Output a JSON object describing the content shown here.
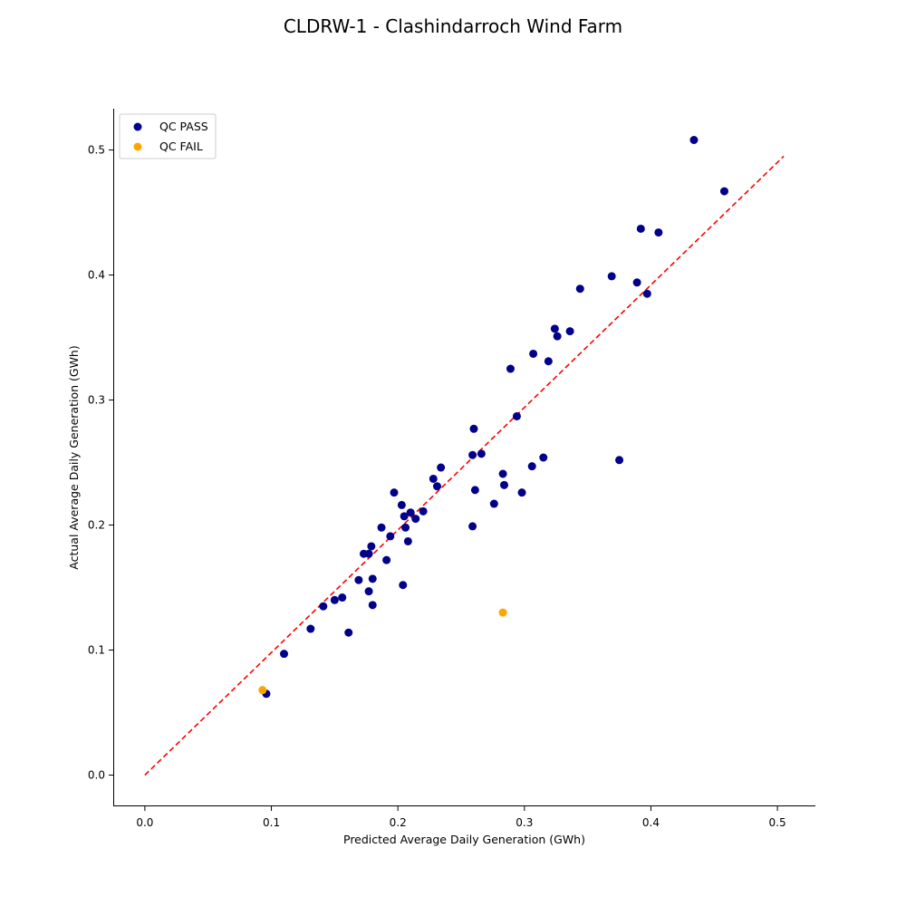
{
  "chart_data": {
    "type": "scatter",
    "title": "CLDRW-1 - Clashindarroch Wind Farm",
    "xlabel": "Predicted Average Daily Generation (GWh)",
    "ylabel": "Actual Average Daily Generation (GWh)",
    "xlim": [
      -0.025,
      0.53
    ],
    "ylim": [
      -0.025,
      0.533
    ],
    "xticks": [
      "0.0",
      "0.1",
      "0.2",
      "0.3",
      "0.4",
      "0.5"
    ],
    "yticks": [
      "0.0",
      "0.1",
      "0.2",
      "0.3",
      "0.4",
      "0.5"
    ],
    "grid": false,
    "legend_position": "upper-left",
    "reference_line": {
      "style": "dashed",
      "color": "#ff0000",
      "from": [
        0,
        0
      ],
      "to": [
        0.505,
        0.495
      ]
    },
    "series": [
      {
        "name": "QC PASS",
        "color": "#00008b",
        "points": [
          [
            0.096,
            0.065
          ],
          [
            0.11,
            0.097
          ],
          [
            0.131,
            0.117
          ],
          [
            0.141,
            0.135
          ],
          [
            0.15,
            0.14
          ],
          [
            0.156,
            0.142
          ],
          [
            0.161,
            0.114
          ],
          [
            0.169,
            0.156
          ],
          [
            0.173,
            0.177
          ],
          [
            0.177,
            0.147
          ],
          [
            0.177,
            0.177
          ],
          [
            0.179,
            0.183
          ],
          [
            0.18,
            0.136
          ],
          [
            0.18,
            0.157
          ],
          [
            0.187,
            0.198
          ],
          [
            0.191,
            0.172
          ],
          [
            0.194,
            0.191
          ],
          [
            0.197,
            0.226
          ],
          [
            0.203,
            0.216
          ],
          [
            0.204,
            0.152
          ],
          [
            0.205,
            0.207
          ],
          [
            0.206,
            0.198
          ],
          [
            0.208,
            0.187
          ],
          [
            0.21,
            0.21
          ],
          [
            0.214,
            0.205
          ],
          [
            0.22,
            0.211
          ],
          [
            0.228,
            0.237
          ],
          [
            0.231,
            0.231
          ],
          [
            0.234,
            0.246
          ],
          [
            0.259,
            0.199
          ],
          [
            0.259,
            0.256
          ],
          [
            0.26,
            0.277
          ],
          [
            0.261,
            0.228
          ],
          [
            0.266,
            0.257
          ],
          [
            0.276,
            0.217
          ],
          [
            0.283,
            0.241
          ],
          [
            0.284,
            0.232
          ],
          [
            0.289,
            0.325
          ],
          [
            0.294,
            0.287
          ],
          [
            0.298,
            0.226
          ],
          [
            0.306,
            0.247
          ],
          [
            0.307,
            0.337
          ],
          [
            0.315,
            0.254
          ],
          [
            0.319,
            0.331
          ],
          [
            0.324,
            0.357
          ],
          [
            0.326,
            0.351
          ],
          [
            0.336,
            0.355
          ],
          [
            0.344,
            0.389
          ],
          [
            0.369,
            0.399
          ],
          [
            0.375,
            0.252
          ],
          [
            0.389,
            0.394
          ],
          [
            0.392,
            0.437
          ],
          [
            0.397,
            0.385
          ],
          [
            0.406,
            0.434
          ],
          [
            0.434,
            0.508
          ],
          [
            0.458,
            0.467
          ]
        ]
      },
      {
        "name": "QC FAIL",
        "color": "#ffa500",
        "points": [
          [
            0.093,
            0.068
          ],
          [
            0.283,
            0.13
          ]
        ]
      }
    ]
  }
}
